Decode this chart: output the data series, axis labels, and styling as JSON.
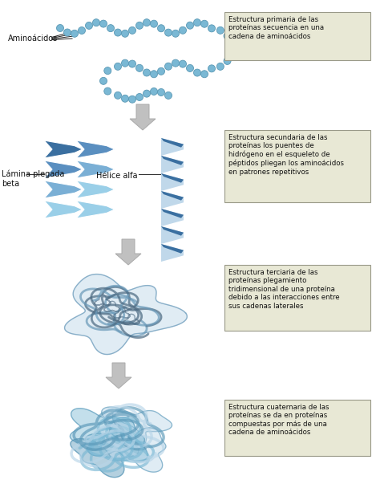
{
  "bg_color": "#ffffff",
  "box_bg": "#e8e8d5",
  "box_border": "#999988",
  "arrow_color": "#bbbbbb",
  "bead_color": "#7ab8d4",
  "bead_edge": "#5a98b4",
  "label_aminoacidos": "Aminoácidos",
  "label_lamina": "Lámina plegada\nbeta",
  "label_helice": "Hélice alfa",
  "box1_text": "Estructura primaria de las\nproteínas secuencia en una\ncadena de aminoácidos",
  "box2_text": "Estructura secundaria de las\nproteínas los puentes de\nhidrógeno en el esqueleto de\npéptidos pliegan los aminoácidos\nen patrones repetitivos",
  "box3_text": "Estructura terciaria de las\nproteínas plegamiento\ntridimensional de una proteína\ndebido a las interacciones entre\nsus cadenas laterales",
  "box4_text": "Estructura cuaternaria de las\nproteínas se da en proteínas\ncompuestas por más de una\ncadena de aminoácidos",
  "font_size_label": 7,
  "font_size_box": 6.2,
  "sheet_dark": "#3a6fa0",
  "sheet_mid": "#5a8fc0",
  "sheet_light": "#7aafd5",
  "sheet_xlight": "#9acfe8",
  "helix_dark": "#3a6fa0",
  "helix_light": "#c0d8ea",
  "tertiary_fill": "#cce0ee",
  "tertiary_line": "#6898b8",
  "quat_fill1": "#b8d5e8",
  "quat_fill2": "#7ab8d4",
  "quat_fill3": "#5a98b8"
}
